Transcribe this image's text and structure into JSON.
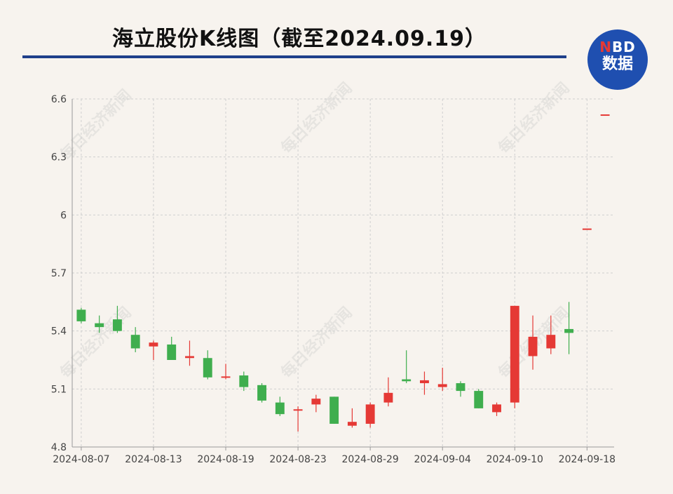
{
  "title": "海立股份K线图（截至2024.09.19）",
  "logo": {
    "brand_n": "N",
    "brand_rest": "BD",
    "label": "数据"
  },
  "watermark": "每日经济新闻",
  "colors": {
    "up": "#e53935",
    "down": "#3fae4e",
    "rule": "#1f3f8a",
    "logo": "#1f4fb0"
  },
  "chart_data": {
    "type": "candlestick",
    "title": "海立股份K线图（截至2024.09.19）",
    "ylim": [
      4.8,
      6.6
    ],
    "y_ticks": [
      "6.6",
      "6.3",
      "6",
      "5.7",
      "5.4",
      "5.1",
      "4.8"
    ],
    "y_tick_values": [
      6.6,
      6.3,
      6.0,
      5.7,
      5.4,
      5.1,
      4.8
    ],
    "x_ticks": [
      "2024-08-07",
      "2024-08-13",
      "2024-08-19",
      "2024-08-23",
      "2024-08-29",
      "2024-09-04",
      "2024-09-10",
      "2024-09-18"
    ],
    "x_tick_index": [
      0,
      4,
      8,
      12,
      16,
      20,
      24,
      28
    ],
    "grid": true,
    "candles": [
      {
        "date": "2024-08-07",
        "open": 5.51,
        "high": 5.52,
        "low": 5.44,
        "close": 5.45
      },
      {
        "date": "2024-08-08",
        "open": 5.44,
        "high": 5.48,
        "low": 5.39,
        "close": 5.42
      },
      {
        "date": "2024-08-09",
        "open": 5.46,
        "high": 5.53,
        "low": 5.39,
        "close": 5.4
      },
      {
        "date": "2024-08-12",
        "open": 5.38,
        "high": 5.42,
        "low": 5.29,
        "close": 5.31
      },
      {
        "date": "2024-08-13",
        "open": 5.32,
        "high": 5.35,
        "low": 5.25,
        "close": 5.34
      },
      {
        "date": "2024-08-14",
        "open": 5.33,
        "high": 5.37,
        "low": 5.25,
        "close": 5.25
      },
      {
        "date": "2024-08-15",
        "open": 5.26,
        "high": 5.35,
        "low": 5.22,
        "close": 5.27
      },
      {
        "date": "2024-08-16",
        "open": 5.26,
        "high": 5.3,
        "low": 5.15,
        "close": 5.16
      },
      {
        "date": "2024-08-19",
        "open": 5.16,
        "high": 5.23,
        "low": 5.15,
        "close": 5.165
      },
      {
        "date": "2024-08-20",
        "open": 5.17,
        "high": 5.19,
        "low": 5.09,
        "close": 5.11
      },
      {
        "date": "2024-08-21",
        "open": 5.12,
        "high": 5.13,
        "low": 5.03,
        "close": 5.04
      },
      {
        "date": "2024-08-22",
        "open": 5.03,
        "high": 5.06,
        "low": 4.96,
        "close": 4.97
      },
      {
        "date": "2024-08-23",
        "open": 4.99,
        "high": 5.01,
        "low": 4.88,
        "close": 4.995
      },
      {
        "date": "2024-08-26",
        "open": 5.02,
        "high": 5.07,
        "low": 4.98,
        "close": 5.05
      },
      {
        "date": "2024-08-27",
        "open": 5.06,
        "high": 5.06,
        "low": 4.92,
        "close": 4.92
      },
      {
        "date": "2024-08-28",
        "open": 4.91,
        "high": 5.0,
        "low": 4.9,
        "close": 4.93
      },
      {
        "date": "2024-08-29",
        "open": 4.92,
        "high": 5.03,
        "low": 4.9,
        "close": 5.02
      },
      {
        "date": "2024-08-30",
        "open": 5.03,
        "high": 5.16,
        "low": 5.01,
        "close": 5.08
      },
      {
        "date": "2024-09-02",
        "open": 5.15,
        "high": 5.3,
        "low": 5.13,
        "close": 5.14
      },
      {
        "date": "2024-09-03",
        "open": 5.13,
        "high": 5.19,
        "low": 5.07,
        "close": 5.145
      },
      {
        "date": "2024-09-04",
        "open": 5.11,
        "high": 5.21,
        "low": 5.09,
        "close": 5.125
      },
      {
        "date": "2024-09-05",
        "open": 5.13,
        "high": 5.14,
        "low": 5.06,
        "close": 5.09
      },
      {
        "date": "2024-09-06",
        "open": 5.09,
        "high": 5.1,
        "low": 5.0,
        "close": 5.0
      },
      {
        "date": "2024-09-09",
        "open": 4.98,
        "high": 5.03,
        "low": 4.96,
        "close": 5.02
      },
      {
        "date": "2024-09-10",
        "open": 5.03,
        "high": 5.53,
        "low": 5.0,
        "close": 5.53
      },
      {
        "date": "2024-09-11",
        "open": 5.27,
        "high": 5.48,
        "low": 5.2,
        "close": 5.37
      },
      {
        "date": "2024-09-12",
        "open": 5.31,
        "high": 5.48,
        "low": 5.28,
        "close": 5.38
      },
      {
        "date": "2024-09-13",
        "open": 5.41,
        "high": 5.55,
        "low": 5.28,
        "close": 5.39
      },
      {
        "date": "2024-09-18",
        "open": 5.93,
        "high": 5.93,
        "low": 5.93,
        "close": 5.93
      },
      {
        "date": "2024-09-19",
        "open": 6.52,
        "high": 6.52,
        "low": 6.52,
        "close": 6.52
      }
    ]
  }
}
